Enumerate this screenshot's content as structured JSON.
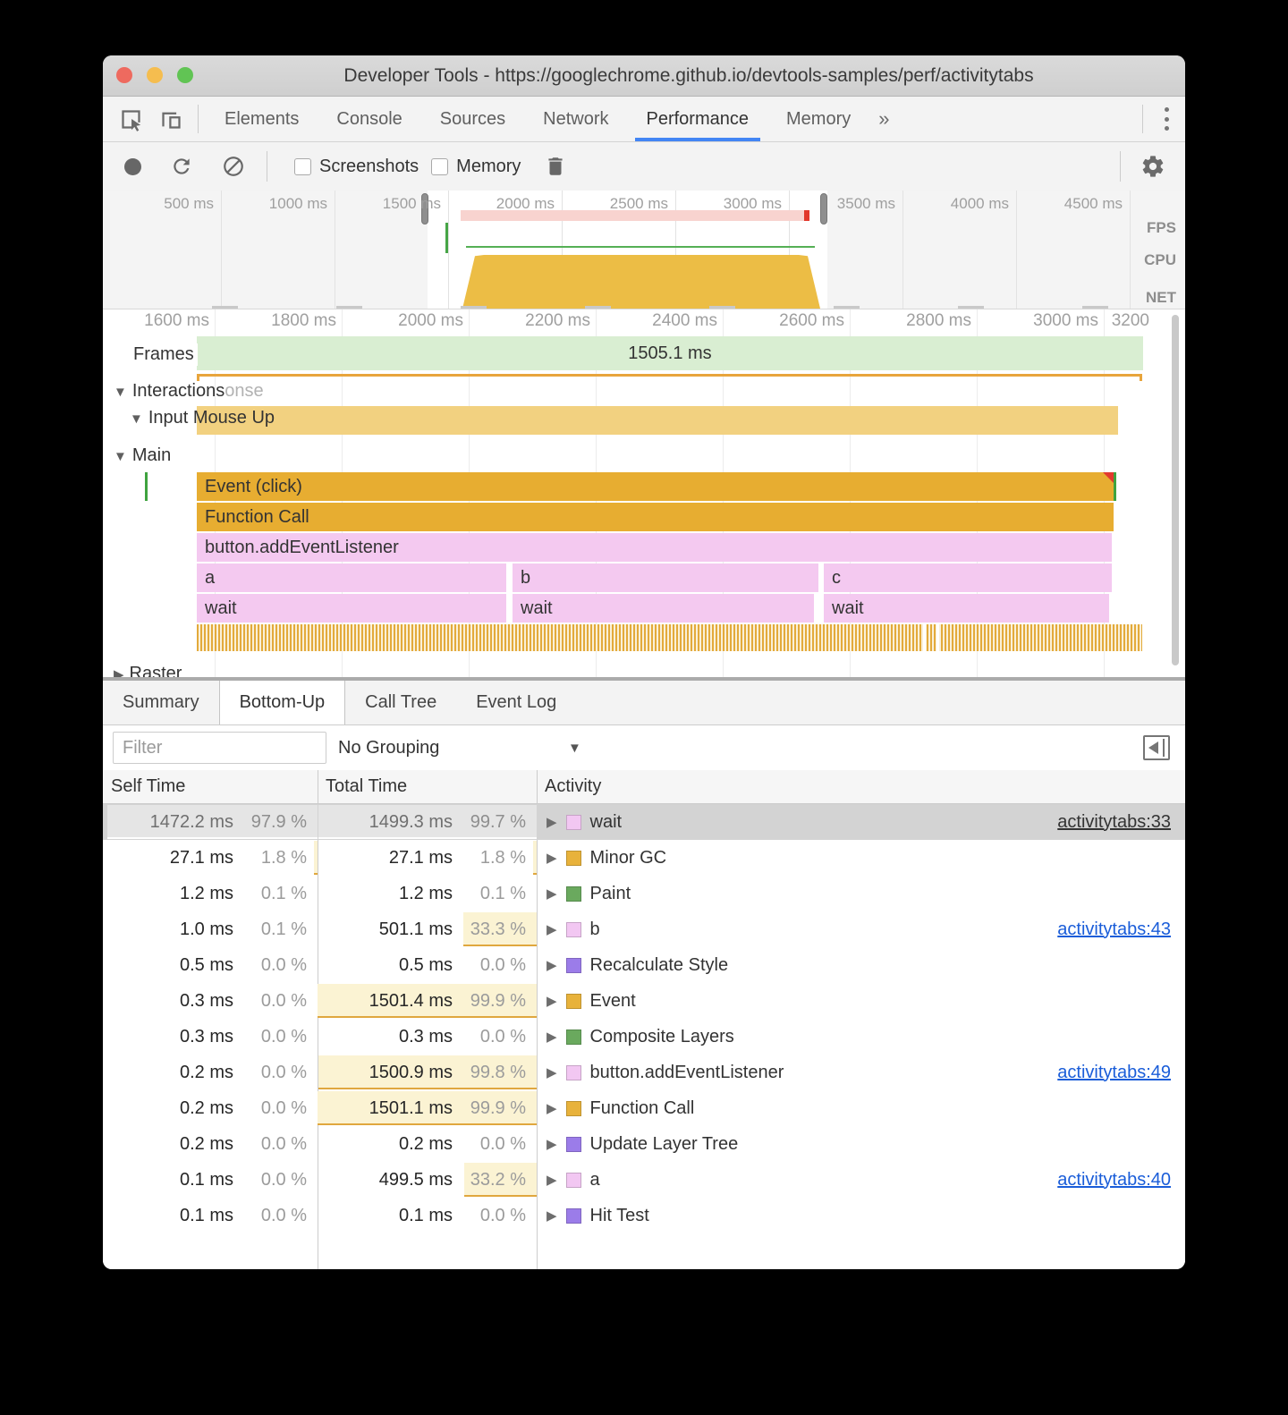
{
  "window": {
    "title": "Developer Tools - https://googlechrome.github.io/devtools-samples/perf/activitytabs"
  },
  "devtools_tabs": {
    "items": [
      "Elements",
      "Console",
      "Sources",
      "Network",
      "Performance",
      "Memory"
    ],
    "active": "Performance",
    "overflow_icon": "»"
  },
  "toolbar": {
    "screenshots_label": "Screenshots",
    "memory_label": "Memory"
  },
  "overview": {
    "ticks": [
      "500 ms",
      "1000 ms",
      "1500 ms",
      "2000 ms",
      "2500 ms",
      "3000 ms",
      "3500 ms",
      "4000 ms",
      "4500 ms"
    ],
    "lanes": [
      "FPS",
      "CPU",
      "NET"
    ]
  },
  "flame": {
    "ruler_ticks": [
      "1600 ms",
      "1800 ms",
      "2000 ms",
      "2200 ms",
      "2400 ms",
      "2600 ms",
      "2800 ms",
      "3000 ms",
      "3200"
    ],
    "frames_label": "Frames",
    "frames_duration": "1505.1 ms",
    "interactions_label": "Interactions",
    "interactions_ghost": "onse",
    "input_mouse_up": "Input Mouse Up",
    "main_label": "Main",
    "bars": {
      "event": "Event (click)",
      "function_call": "Function Call",
      "listener": "button.addEventListener",
      "a": "a",
      "b": "b",
      "c": "c",
      "wait": "wait"
    },
    "raster_label": "Raster"
  },
  "bottom": {
    "tabs": [
      "Summary",
      "Bottom-Up",
      "Call Tree",
      "Event Log"
    ],
    "active_tab": "Bottom-Up",
    "filter_placeholder": "Filter",
    "grouping": "No Grouping",
    "table": {
      "headers": [
        "Self Time",
        "Total Time",
        "Activity"
      ],
      "rows": [
        {
          "self_ms": "1472.2 ms",
          "self_pct": "97.9 %",
          "total_ms": "1499.3 ms",
          "total_pct": "99.7 %",
          "activity": "wait",
          "type": "pink",
          "link": "activitytabs:33",
          "selected": true,
          "self_hl": 97.9,
          "total_hl": 99.7
        },
        {
          "self_ms": "27.1 ms",
          "self_pct": "1.8 %",
          "total_ms": "27.1 ms",
          "total_pct": "1.8 %",
          "activity": "Minor GC",
          "type": "amber",
          "self_hl": 1.8,
          "total_hl": 1.8
        },
        {
          "self_ms": "1.2 ms",
          "self_pct": "0.1 %",
          "total_ms": "1.2 ms",
          "total_pct": "0.1 %",
          "activity": "Paint",
          "type": "green"
        },
        {
          "self_ms": "1.0 ms",
          "self_pct": "0.1 %",
          "total_ms": "501.1 ms",
          "total_pct": "33.3 %",
          "activity": "b",
          "type": "pink",
          "link": "activitytabs:43",
          "total_hl": 33.3
        },
        {
          "self_ms": "0.5 ms",
          "self_pct": "0.0 %",
          "total_ms": "0.5 ms",
          "total_pct": "0.0 %",
          "activity": "Recalculate Style",
          "type": "purple"
        },
        {
          "self_ms": "0.3 ms",
          "self_pct": "0.0 %",
          "total_ms": "1501.4 ms",
          "total_pct": "99.9 %",
          "activity": "Event",
          "type": "amber",
          "total_hl": 99.9
        },
        {
          "self_ms": "0.3 ms",
          "self_pct": "0.0 %",
          "total_ms": "0.3 ms",
          "total_pct": "0.0 %",
          "activity": "Composite Layers",
          "type": "green"
        },
        {
          "self_ms": "0.2 ms",
          "self_pct": "0.0 %",
          "total_ms": "1500.9 ms",
          "total_pct": "99.8 %",
          "activity": "button.addEventListener",
          "type": "pink",
          "link": "activitytabs:49",
          "total_hl": 99.8
        },
        {
          "self_ms": "0.2 ms",
          "self_pct": "0.0 %",
          "total_ms": "1501.1 ms",
          "total_pct": "99.9 %",
          "activity": "Function Call",
          "type": "amber",
          "total_hl": 99.9
        },
        {
          "self_ms": "0.2 ms",
          "self_pct": "0.0 %",
          "total_ms": "0.2 ms",
          "total_pct": "0.0 %",
          "activity": "Update Layer Tree",
          "type": "purple"
        },
        {
          "self_ms": "0.1 ms",
          "self_pct": "0.0 %",
          "total_ms": "499.5 ms",
          "total_pct": "33.2 %",
          "activity": "a",
          "type": "pink",
          "link": "activitytabs:40",
          "total_hl": 33.2
        },
        {
          "self_ms": "0.1 ms",
          "self_pct": "0.0 %",
          "total_ms": "0.1 ms",
          "total_pct": "0.0 %",
          "activity": "Hit Test",
          "type": "purple"
        }
      ]
    }
  },
  "colors": {
    "light_red": "#ee6a5f",
    "light_yellow": "#f5bd4f",
    "light_green": "#61c454",
    "accent": "#4285f4",
    "link": "#1a5dd9",
    "pink": "#f2c7f2",
    "amber": "#e8b23b",
    "green": "#6aa95e",
    "purple": "#9b7ce9",
    "bar_amber": "#e7ad31",
    "bar_pink": "#f4c9f0",
    "input_amber": "#f2d180",
    "frames_green": "#d9eed2",
    "cpu_fill": "#ecbd45",
    "hl": "#fbf3d3",
    "hl_border": "#e0a73e"
  }
}
